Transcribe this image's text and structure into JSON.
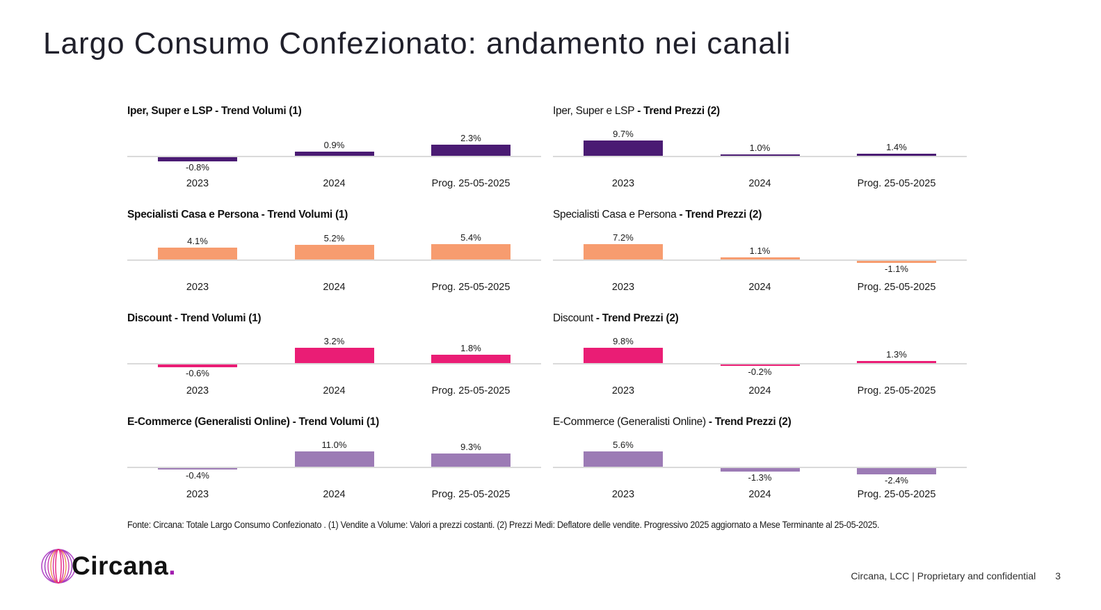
{
  "slide": {
    "title": "Largo Consumo Confezionato: andamento nei canali",
    "footnote": "Fonte: Circana: Totale Largo Consumo Confezionato . (1) Vendite a Volume: Valori a prezzi costanti. (2) Prezzi Medi: Deflatore delle vendite. Progressivo 2025 aggiornato a Mese Terminante al 25-05-2025.",
    "footer_right": "Circana, LCC |  Proprietary and confidential",
    "page_number": "3",
    "logo_text": "Circana",
    "logo_dot": "."
  },
  "colors": {
    "dark_purple": "#4a1b73",
    "orange": "#f79c6f",
    "magenta": "#ea1d75",
    "light_purple": "#9c7bb5",
    "axis": "#dadada",
    "text": "#1a1a1a"
  },
  "chart_data": [
    {
      "type": "bar",
      "title": "Iper, Super e LSP - Trend Volumi (1)",
      "channel": "Iper, Super e LSP",
      "metric": "Trend Volumi (1)",
      "bold_channel": true,
      "categories": [
        "2023",
        "2024",
        "Prog. 25-05-2025"
      ],
      "values": [
        -0.8,
        0.9,
        2.3
      ],
      "labels": [
        "-0.8%",
        "0.9%",
        "2.3%"
      ],
      "color": "#4a1b73",
      "grid": false
    },
    {
      "type": "bar",
      "title": "Iper, Super e LSP - Trend Prezzi (2)",
      "channel": "Iper, Super e LSP",
      "metric": "Trend Prezzi (2)",
      "bold_channel": false,
      "categories": [
        "2023",
        "2024",
        "Prog. 25-05-2025"
      ],
      "values": [
        9.7,
        1.0,
        1.4
      ],
      "labels": [
        "9.7%",
        "1.0%",
        "1.4%"
      ],
      "color": "#4a1b73",
      "grid": false
    },
    {
      "type": "bar",
      "title": "Specialisti Casa e Persona - Trend Volumi (1)",
      "channel": "Specialisti Casa e Persona",
      "metric": "Trend Volumi (1)",
      "bold_channel": true,
      "categories": [
        "2023",
        "2024",
        "Prog. 25-05-2025"
      ],
      "values": [
        4.1,
        5.2,
        5.4
      ],
      "labels": [
        "4.1%",
        "5.2%",
        "5.4%"
      ],
      "color": "#f79c6f",
      "grid": false
    },
    {
      "type": "bar",
      "title": "Specialisti Casa e Persona - Trend Prezzi (2)",
      "channel": "Specialisti Casa e Persona",
      "metric": "Trend Prezzi (2)",
      "bold_channel": false,
      "categories": [
        "2023",
        "2024",
        "Prog. 25-05-2025"
      ],
      "values": [
        7.2,
        1.1,
        -1.1
      ],
      "labels": [
        "7.2%",
        "1.1%",
        "-1.1%"
      ],
      "color": "#f79c6f",
      "grid": false
    },
    {
      "type": "bar",
      "title": "Discount - Trend Volumi (1)",
      "channel": "Discount",
      "metric": "Trend Volumi (1)",
      "bold_channel": true,
      "categories": [
        "2023",
        "2024",
        "Prog. 25-05-2025"
      ],
      "values": [
        -0.6,
        3.2,
        1.8
      ],
      "labels": [
        "-0.6%",
        "3.2%",
        "1.8%"
      ],
      "color": "#ea1d75",
      "grid": false
    },
    {
      "type": "bar",
      "title": "Discount - Trend Prezzi (2)",
      "channel": "Discount",
      "metric": "Trend Prezzi (2)",
      "bold_channel": false,
      "categories": [
        "2023",
        "2024",
        "Prog. 25-05-2025"
      ],
      "values": [
        9.8,
        -0.2,
        1.3
      ],
      "labels": [
        "9.8%",
        "-0.2%",
        "1.3%"
      ],
      "color": "#ea1d75",
      "grid": false
    },
    {
      "type": "bar",
      "title": "E-Commerce (Generalisti Online) - Trend Volumi (1)",
      "channel": "E-Commerce (Generalisti Online)",
      "metric": "Trend Volumi (1)",
      "bold_channel": true,
      "categories": [
        "2023",
        "2024",
        "Prog. 25-05-2025"
      ],
      "values": [
        -0.4,
        11.0,
        9.3
      ],
      "labels": [
        "-0.4%",
        "11.0%",
        "9.3%"
      ],
      "color": "#9c7bb5",
      "grid": false
    },
    {
      "type": "bar",
      "title": "E-Commerce (Generalisti Online) - Trend Prezzi (2)",
      "channel": "E-Commerce (Generalisti Online)",
      "metric": "Trend Prezzi (2)",
      "bold_channel": false,
      "categories": [
        "2023",
        "2024",
        "Prog. 25-05-2025"
      ],
      "values": [
        5.6,
        -1.3,
        -2.4
      ],
      "labels": [
        "5.6%",
        "-1.3%",
        "-2.4%"
      ],
      "color": "#9c7bb5",
      "grid": false
    }
  ]
}
